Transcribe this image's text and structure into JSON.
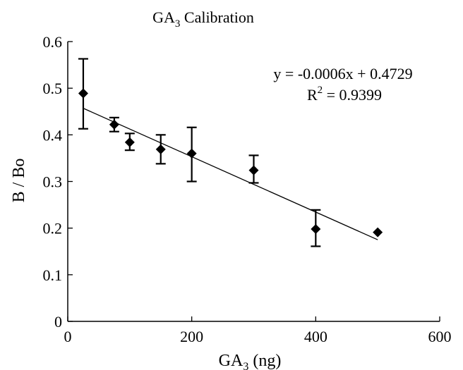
{
  "chart_data": {
    "type": "scatter",
    "title": "GA3 Calibration",
    "title_main": "GA",
    "title_sub": "3",
    "title_rest": " Calibration",
    "xlabel": "GA3 (ng)",
    "xlabel_main": "GA",
    "xlabel_sub": "3",
    "xlabel_rest": " (ng)",
    "ylabel": "B / Bo",
    "xlim": [
      0,
      600
    ],
    "ylim": [
      0,
      0.6
    ],
    "xticks": [
      "0",
      "200",
      "400",
      "600"
    ],
    "yticks": [
      "0",
      "0.1",
      "0.2",
      "0.3",
      "0.4",
      "0.5",
      "0.6"
    ],
    "grid": false,
    "marker": "diamond",
    "points": [
      {
        "x": 25,
        "y": 0.489,
        "err_low": 0.413,
        "err_high": 0.563
      },
      {
        "x": 75,
        "y": 0.422,
        "err_low": 0.407,
        "err_high": 0.437
      },
      {
        "x": 100,
        "y": 0.384,
        "err_low": 0.367,
        "err_high": 0.403
      },
      {
        "x": 150,
        "y": 0.369,
        "err_low": 0.338,
        "err_high": 0.4
      },
      {
        "x": 200,
        "y": 0.36,
        "err_low": 0.3,
        "err_high": 0.416
      },
      {
        "x": 300,
        "y": 0.324,
        "err_low": 0.297,
        "err_high": 0.356
      },
      {
        "x": 400,
        "y": 0.198,
        "err_low": 0.161,
        "err_high": 0.239
      },
      {
        "x": 500,
        "y": 0.191,
        "err_low": null,
        "err_high": null
      }
    ],
    "trendline": {
      "x_start": 25,
      "y_start": 0.457,
      "x_end": 500,
      "y_end": 0.175
    },
    "equation": "y = -0.0006x + 0.4729",
    "r2_prefix": "R",
    "r2_sup": "2",
    "r2_value": " = 0.9399"
  }
}
